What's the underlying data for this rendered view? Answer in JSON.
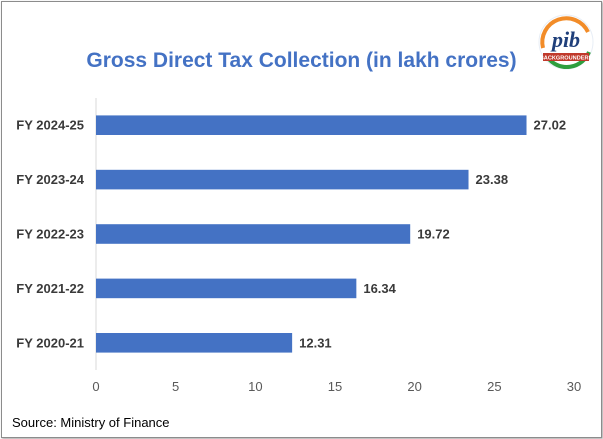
{
  "chart_data": {
    "type": "bar",
    "orientation": "horizontal",
    "title": "Gross Direct Tax Collection (in lakh crores)",
    "xlabel": "",
    "ylabel": "",
    "categories": [
      "FY 2024-25",
      "FY 2023-24",
      "FY 2022-23",
      "FY 2021-22",
      "FY 2020-21"
    ],
    "values": [
      27.02,
      23.38,
      19.72,
      16.34,
      12.31
    ],
    "value_labels": [
      "27.02",
      "23.38",
      "19.72",
      "16.34",
      "12.31"
    ],
    "xlim": [
      0,
      30
    ],
    "xticks": [
      0,
      5,
      10,
      15,
      20,
      25,
      30
    ],
    "grid": false,
    "legend": "none",
    "bar_color": "#4472c4"
  },
  "logo": {
    "text": "pib",
    "subtext": "BACKGROUNDERS"
  },
  "footer": {
    "source": "Source: Ministry of Finance"
  }
}
